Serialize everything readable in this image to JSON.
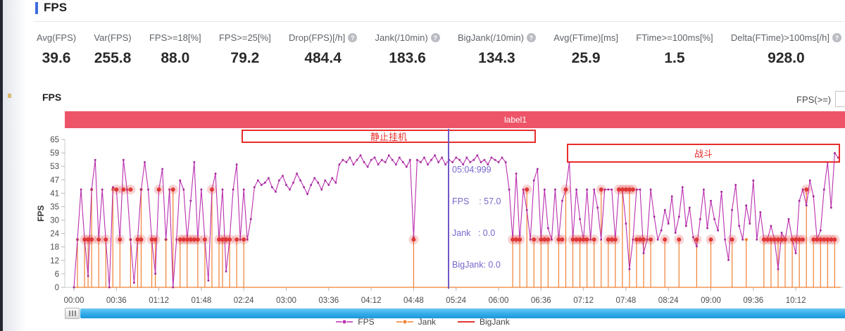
{
  "page": {
    "title": "FPS"
  },
  "stats": [
    {
      "label": "Avg(FPS)",
      "value": "39.6",
      "help": false
    },
    {
      "label": "Var(FPS)",
      "value": "255.8",
      "help": false
    },
    {
      "label": "FPS>=18[%]",
      "value": "88.0",
      "help": false
    },
    {
      "label": "FPS>=25[%]",
      "value": "79.2",
      "help": false
    },
    {
      "label": "Drop(FPS)[/h]",
      "value": "484.4",
      "help": true
    },
    {
      "label": "Jank(/10min)",
      "value": "183.6",
      "help": true
    },
    {
      "label": "BigJank(/10min)",
      "value": "134.3",
      "help": true
    },
    {
      "label": "Avg(FTime)[ms]",
      "value": "25.9",
      "help": false
    },
    {
      "label": "FTime>=100ms[%]",
      "value": "1.5",
      "help": false
    },
    {
      "label": "Delta(FTime)>100ms[/h]",
      "value": "928.0",
      "help": true
    }
  ],
  "chart": {
    "section_title": "FPS",
    "threshold_label": "FPS(>=)",
    "threshold_value": "",
    "banner": {
      "text": "label1",
      "color": "#ee5468"
    },
    "annotations": [
      {
        "text": "静止挂机",
        "color": "#e82c2c"
      },
      {
        "text": "战斗",
        "color": "#e82c2c"
      }
    ],
    "cursor": {
      "time": "05:04:999",
      "fps": "FPS    : 57.0",
      "jank": "Jank   : 0.0",
      "bigjank": "BigJank: 0.0"
    }
  },
  "chart_data": {
    "type": "line",
    "title": "FPS",
    "xlabel": "",
    "ylabel": "FPS",
    "ylim": [
      0,
      65
    ],
    "grid": false,
    "legend_position": "bottom",
    "y_ticks": [
      65,
      59,
      53,
      47,
      41,
      35,
      30,
      24,
      18,
      12,
      6,
      0
    ],
    "x_ticks": [
      "00:00",
      "00:36",
      "01:12",
      "01:48",
      "02:24",
      "03:00",
      "03:36",
      "04:12",
      "04:48",
      "05:24",
      "06:00",
      "06:36",
      "07:12",
      "07:48",
      "08:24",
      "09:00",
      "09:36",
      "10:12"
    ],
    "x_tick_interval_s": 36,
    "series": [
      {
        "name": "FPS",
        "type": "line",
        "color": "#bb2fb0",
        "marker_color": "#a2279a",
        "t0": 0,
        "dt": 3,
        "values": [
          0,
          21,
          43,
          21,
          5,
          43,
          56,
          21,
          43,
          21,
          0,
          44,
          43,
          21,
          56,
          43,
          21,
          2,
          21,
          43,
          55,
          43,
          21,
          6,
          43,
          52,
          21,
          43,
          0,
          21,
          47,
          43,
          21,
          38,
          55,
          21,
          43,
          21,
          3,
          43,
          50,
          21,
          43,
          7,
          21,
          43,
          54,
          21,
          43,
          21,
          30,
          44,
          47,
          45,
          46,
          48,
          44,
          42,
          47,
          49,
          45,
          43,
          46,
          50,
          47,
          44,
          41,
          45,
          48,
          46,
          43,
          47,
          45,
          48,
          46,
          54,
          56,
          55,
          57,
          54,
          56,
          58,
          55,
          53,
          56,
          57,
          54,
          56,
          55,
          58,
          56,
          54,
          57,
          55,
          53,
          56,
          22,
          56,
          55,
          57,
          54,
          56,
          58,
          55,
          57,
          54,
          56,
          55,
          57,
          56,
          54,
          57,
          55,
          56,
          58,
          55,
          56,
          54,
          57,
          56,
          55,
          57,
          55,
          43,
          21,
          50,
          21,
          43,
          34,
          21,
          47,
          52,
          21,
          43,
          26,
          21,
          43,
          21,
          38,
          43,
          55,
          21,
          43,
          30,
          21,
          43,
          21,
          43,
          35,
          21,
          43,
          43,
          43,
          21,
          43,
          43,
          28,
          8,
          21,
          43,
          43,
          15,
          21,
          43,
          31,
          21,
          25,
          34,
          28,
          40,
          24,
          31,
          44,
          27,
          35,
          22,
          18,
          30,
          43,
          26,
          38,
          30,
          25,
          42,
          21,
          12,
          34,
          45,
          27,
          21,
          36,
          28,
          47,
          21,
          33,
          21,
          21,
          27,
          21,
          8,
          24,
          21,
          30,
          21,
          15,
          38,
          43,
          36,
          47,
          40,
          21,
          25,
          43,
          55,
          35,
          59,
          57
        ]
      },
      {
        "name": "Jank",
        "type": "spikes",
        "color": "#f08033",
        "baseline": 0,
        "spikes": [
          [
            3,
            21
          ],
          [
            9,
            21
          ],
          [
            12,
            21
          ],
          [
            15,
            43
          ],
          [
            21,
            21
          ],
          [
            27,
            21
          ],
          [
            33,
            43
          ],
          [
            39,
            21
          ],
          [
            48,
            21
          ],
          [
            54,
            21
          ],
          [
            57,
            43
          ],
          [
            66,
            21
          ],
          [
            69,
            21
          ],
          [
            78,
            21
          ],
          [
            84,
            43
          ],
          [
            90,
            21
          ],
          [
            96,
            21
          ],
          [
            105,
            21
          ],
          [
            111,
            21
          ],
          [
            117,
            43
          ],
          [
            123,
            21
          ],
          [
            126,
            21
          ],
          [
            132,
            21
          ],
          [
            138,
            21
          ],
          [
            144,
            21
          ],
          [
            288,
            21
          ],
          [
            372,
            21
          ],
          [
            378,
            21
          ],
          [
            384,
            43
          ],
          [
            390,
            21
          ],
          [
            396,
            21
          ],
          [
            402,
            21
          ],
          [
            411,
            21
          ],
          [
            417,
            43
          ],
          [
            423,
            21
          ],
          [
            429,
            21
          ],
          [
            435,
            21
          ],
          [
            441,
            21
          ],
          [
            447,
            43
          ],
          [
            453,
            21
          ],
          [
            459,
            21
          ],
          [
            465,
            43
          ],
          [
            471,
            43
          ],
          [
            477,
            21
          ],
          [
            483,
            21
          ],
          [
            489,
            21
          ],
          [
            501,
            21
          ],
          [
            513,
            21
          ],
          [
            528,
            21
          ],
          [
            540,
            21
          ],
          [
            558,
            21
          ],
          [
            570,
            21
          ],
          [
            585,
            21
          ],
          [
            591,
            21
          ],
          [
            597,
            21
          ],
          [
            603,
            21
          ],
          [
            609,
            21
          ],
          [
            615,
            21
          ],
          [
            621,
            43
          ],
          [
            627,
            21
          ],
          [
            633,
            21
          ],
          [
            639,
            21
          ],
          [
            645,
            21
          ]
        ]
      },
      {
        "name": "BigJank",
        "type": "markers",
        "color": "#e03838",
        "halo": "rgba(224,56,56,0.22)",
        "markers": [
          [
            36,
            43
          ],
          [
            42,
            43
          ],
          [
            48,
            43
          ],
          [
            72,
            43
          ],
          [
            84,
            43
          ],
          [
            117,
            43
          ],
          [
            384,
            43
          ],
          [
            417,
            43
          ],
          [
            447,
            43
          ],
          [
            462,
            43
          ],
          [
            465,
            43
          ],
          [
            468,
            43
          ],
          [
            471,
            43
          ],
          [
            474,
            43
          ],
          [
            621,
            43
          ],
          [
            9,
            21
          ],
          [
            12,
            21
          ],
          [
            15,
            21
          ],
          [
            21,
            21
          ],
          [
            27,
            21
          ],
          [
            39,
            21
          ],
          [
            54,
            21
          ],
          [
            57,
            21
          ],
          [
            66,
            21
          ],
          [
            69,
            21
          ],
          [
            90,
            21
          ],
          [
            93,
            21
          ],
          [
            96,
            21
          ],
          [
            99,
            21
          ],
          [
            102,
            21
          ],
          [
            105,
            21
          ],
          [
            111,
            21
          ],
          [
            123,
            21
          ],
          [
            126,
            21
          ],
          [
            129,
            21
          ],
          [
            132,
            21
          ],
          [
            138,
            21
          ],
          [
            144,
            21
          ],
          [
            288,
            21
          ],
          [
            372,
            21
          ],
          [
            375,
            21
          ],
          [
            378,
            21
          ],
          [
            390,
            21
          ],
          [
            396,
            21
          ],
          [
            399,
            21
          ],
          [
            402,
            21
          ],
          [
            411,
            21
          ],
          [
            414,
            21
          ],
          [
            423,
            21
          ],
          [
            426,
            21
          ],
          [
            429,
            21
          ],
          [
            432,
            21
          ],
          [
            435,
            21
          ],
          [
            441,
            21
          ],
          [
            453,
            21
          ],
          [
            456,
            21
          ],
          [
            459,
            21
          ],
          [
            477,
            21
          ],
          [
            480,
            21
          ],
          [
            483,
            21
          ],
          [
            489,
            21
          ],
          [
            501,
            21
          ],
          [
            513,
            21
          ],
          [
            528,
            21
          ],
          [
            540,
            21
          ],
          [
            558,
            21
          ],
          [
            585,
            21
          ],
          [
            588,
            21
          ],
          [
            591,
            21
          ],
          [
            594,
            21
          ],
          [
            597,
            21
          ],
          [
            600,
            21
          ],
          [
            603,
            21
          ],
          [
            609,
            21
          ],
          [
            612,
            21
          ],
          [
            615,
            21
          ],
          [
            618,
            21
          ],
          [
            627,
            21
          ],
          [
            630,
            21
          ],
          [
            633,
            21
          ],
          [
            636,
            21
          ],
          [
            639,
            21
          ],
          [
            642,
            21
          ],
          [
            645,
            21
          ]
        ]
      }
    ]
  },
  "legend": [
    {
      "label": "FPS"
    },
    {
      "label": "Jank"
    },
    {
      "label": "BigJank"
    }
  ]
}
